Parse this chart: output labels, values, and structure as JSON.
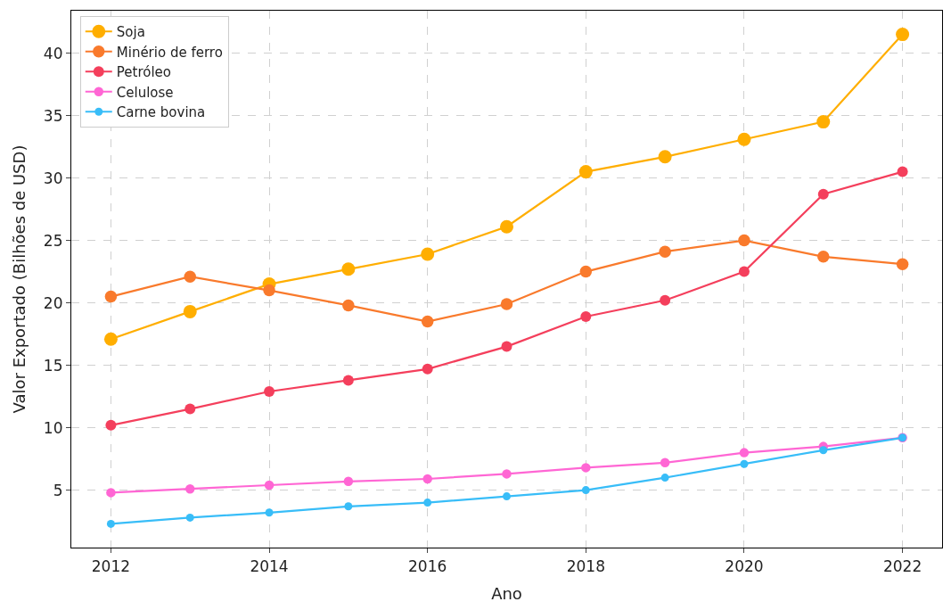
{
  "chart_data": {
    "type": "line",
    "xlabel": "Ano",
    "ylabel": "Valor Exportado (Bilhões de USD)",
    "x": [
      2012,
      2013,
      2014,
      2015,
      2016,
      2017,
      2018,
      2019,
      2020,
      2021,
      2022
    ],
    "series": [
      {
        "name": "Soja",
        "color": "#ffae00",
        "values": [
          17.1,
          19.3,
          21.5,
          22.7,
          23.9,
          26.1,
          30.5,
          31.7,
          33.1,
          34.5,
          41.5
        ]
      },
      {
        "name": "Minério de ferro",
        "color": "#f97a2c",
        "values": [
          20.5,
          22.1,
          21.0,
          19.8,
          18.5,
          19.9,
          22.5,
          24.1,
          25.0,
          23.7,
          23.1
        ]
      },
      {
        "name": "Petróleo",
        "color": "#f43f5c",
        "values": [
          10.2,
          11.5,
          12.9,
          13.8,
          14.7,
          16.5,
          18.9,
          20.2,
          22.5,
          28.7,
          30.5
        ]
      },
      {
        "name": "Celulose",
        "color": "#ff66d4",
        "values": [
          4.8,
          5.1,
          5.4,
          5.7,
          5.9,
          6.3,
          6.8,
          7.2,
          8.0,
          8.5,
          9.2
        ]
      },
      {
        "name": "Carne bovina",
        "color": "#38bdf8",
        "values": [
          2.3,
          2.8,
          3.2,
          3.7,
          4.0,
          4.5,
          5.0,
          6.0,
          7.1,
          8.2,
          9.2
        ]
      }
    ],
    "xlim": [
      2011.5,
      2022.5
    ],
    "xticks": [
      2012,
      2014,
      2016,
      2018,
      2020,
      2022
    ],
    "ylim": [
      0.4,
      43.4
    ],
    "yticks": [
      5,
      10,
      15,
      20,
      25,
      30,
      35,
      40
    ],
    "grid": true,
    "legend": "top left",
    "marker": "circle",
    "line_style": "solid"
  }
}
